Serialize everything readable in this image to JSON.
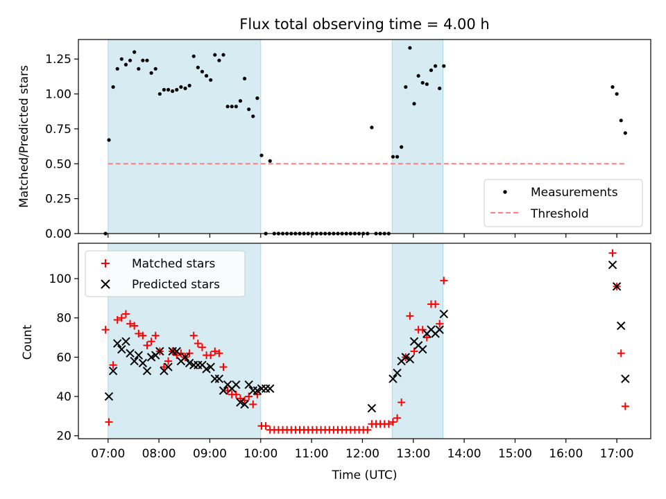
{
  "chart_data": [
    {
      "type": "scatter",
      "title": "Flux total observing time = 4.00 h",
      "ylabel": "Matched/Predicted stars",
      "xlabel": "",
      "ylim": [
        0,
        1.39
      ],
      "yticks": [
        "0.00",
        "0.25",
        "0.50",
        "0.75",
        "1.00",
        "1.25"
      ],
      "ytick_values": [
        0,
        0.25,
        0.5,
        0.75,
        1.0,
        1.25
      ],
      "legend_position": "lower-right",
      "shaded_spans": [
        [
          "07:00",
          "10:00"
        ],
        [
          "12:35",
          "13:35"
        ]
      ],
      "series": [
        {
          "name": "Measurements",
          "marker": "dot",
          "color": "#000000",
          "points": [
            [
              "06:57",
              0.0
            ],
            [
              "07:01",
              0.67
            ],
            [
              "07:06",
              1.05
            ],
            [
              "07:11",
              1.18
            ],
            [
              "07:16",
              1.25
            ],
            [
              "07:21",
              1.21
            ],
            [
              "07:26",
              1.24
            ],
            [
              "07:31",
              1.3
            ],
            [
              "07:36",
              1.18
            ],
            [
              "07:41",
              1.24
            ],
            [
              "07:46",
              1.24
            ],
            [
              "07:51",
              1.15
            ],
            [
              "07:56",
              1.18
            ],
            [
              "08:01",
              1.0
            ],
            [
              "08:06",
              1.03
            ],
            [
              "08:11",
              1.03
            ],
            [
              "08:16",
              1.02
            ],
            [
              "08:21",
              1.03
            ],
            [
              "08:26",
              1.05
            ],
            [
              "08:31",
              1.04
            ],
            [
              "08:36",
              1.06
            ],
            [
              "08:41",
              1.27
            ],
            [
              "08:46",
              1.19
            ],
            [
              "08:51",
              1.16
            ],
            [
              "08:56",
              1.13
            ],
            [
              "09:01",
              1.1
            ],
            [
              "09:06",
              1.28
            ],
            [
              "09:11",
              1.24
            ],
            [
              "09:16",
              1.28
            ],
            [
              "09:21",
              0.91
            ],
            [
              "09:26",
              0.91
            ],
            [
              "09:31",
              0.91
            ],
            [
              "09:36",
              0.95
            ],
            [
              "09:41",
              1.11
            ],
            [
              "09:46",
              0.89
            ],
            [
              "09:51",
              0.84
            ],
            [
              "09:56",
              0.97
            ],
            [
              "10:01",
              0.56
            ],
            [
              "10:06",
              0.0
            ],
            [
              "10:11",
              0.52
            ],
            [
              "10:16",
              0.0
            ],
            [
              "10:21",
              0.0
            ],
            [
              "10:26",
              0.0
            ],
            [
              "10:31",
              0.0
            ],
            [
              "10:36",
              0.0
            ],
            [
              "10:41",
              0.0
            ],
            [
              "10:46",
              0.0
            ],
            [
              "10:51",
              0.0
            ],
            [
              "10:56",
              0.0
            ],
            [
              "11:01",
              0.0
            ],
            [
              "11:06",
              0.0
            ],
            [
              "11:11",
              0.0
            ],
            [
              "11:16",
              0.0
            ],
            [
              "11:21",
              0.0
            ],
            [
              "11:26",
              0.0
            ],
            [
              "11:31",
              0.0
            ],
            [
              "11:36",
              0.0
            ],
            [
              "11:41",
              0.0
            ],
            [
              "11:46",
              0.0
            ],
            [
              "11:51",
              0.0
            ],
            [
              "11:56",
              0.0
            ],
            [
              "12:01",
              0.0
            ],
            [
              "12:06",
              0.0
            ],
            [
              "12:11",
              0.76
            ],
            [
              "12:16",
              0.0
            ],
            [
              "12:21",
              0.0
            ],
            [
              "12:26",
              0.0
            ],
            [
              "12:31",
              0.0
            ],
            [
              "12:36",
              0.55
            ],
            [
              "12:41",
              0.55
            ],
            [
              "12:46",
              0.62
            ],
            [
              "12:51",
              1.05
            ],
            [
              "12:56",
              1.33
            ],
            [
              "13:01",
              0.93
            ],
            [
              "13:06",
              1.13
            ],
            [
              "13:11",
              1.08
            ],
            [
              "13:16",
              1.07
            ],
            [
              "13:21",
              1.17
            ],
            [
              "13:26",
              1.2
            ],
            [
              "13:31",
              1.04
            ],
            [
              "13:36",
              1.2
            ],
            [
              "16:55",
              1.05
            ],
            [
              "17:00",
              1.0
            ],
            [
              "17:05",
              0.81
            ],
            [
              "17:10",
              0.72
            ]
          ]
        },
        {
          "name": "Threshold",
          "marker": "dashed-line",
          "color": "#ff7f7f",
          "points": [
            [
              "07:00",
              0.5
            ],
            [
              "17:10",
              0.5
            ]
          ]
        }
      ]
    },
    {
      "type": "scatter",
      "title": "",
      "ylabel": "Count",
      "xlabel": "Time (UTC)",
      "ylim": [
        18.5,
        118
      ],
      "yticks": [
        "20",
        "40",
        "60",
        "80",
        "100"
      ],
      "ytick_values": [
        20,
        40,
        60,
        80,
        100
      ],
      "xlim": [
        "06:25",
        "17:40"
      ],
      "xticks": [
        "07:00",
        "08:00",
        "09:00",
        "10:00",
        "11:00",
        "12:00",
        "13:00",
        "14:00",
        "15:00",
        "16:00",
        "17:00"
      ],
      "legend_position": "upper-left",
      "shaded_spans": [
        [
          "07:00",
          "10:00"
        ],
        [
          "12:35",
          "13:35"
        ]
      ],
      "series": [
        {
          "name": "Matched stars",
          "marker": "plus",
          "color": "#ff0000",
          "points": [
            [
              "06:57",
              74
            ],
            [
              "07:01",
              27
            ],
            [
              "07:06",
              56
            ],
            [
              "07:11",
              79
            ],
            [
              "07:16",
              80
            ],
            [
              "07:21",
              82
            ],
            [
              "07:26",
              77
            ],
            [
              "07:31",
              76
            ],
            [
              "07:36",
              72
            ],
            [
              "07:41",
              71
            ],
            [
              "07:46",
              66
            ],
            [
              "07:51",
              68
            ],
            [
              "07:56",
              71
            ],
            [
              "08:01",
              63
            ],
            [
              "08:06",
              55
            ],
            [
              "08:11",
              58
            ],
            [
              "08:16",
              63
            ],
            [
              "08:21",
              61
            ],
            [
              "08:26",
              62
            ],
            [
              "08:31",
              60
            ],
            [
              "08:36",
              62
            ],
            [
              "08:41",
              71
            ],
            [
              "08:46",
              67
            ],
            [
              "08:51",
              65
            ],
            [
              "08:56",
              61
            ],
            [
              "09:01",
              61
            ],
            [
              "09:06",
              63
            ],
            [
              "09:11",
              62
            ],
            [
              "09:16",
              55
            ],
            [
              "09:21",
              43
            ],
            [
              "09:26",
              41
            ],
            [
              "09:31",
              41
            ],
            [
              "09:36",
              39
            ],
            [
              "09:41",
              38
            ],
            [
              "09:46",
              40
            ],
            [
              "09:51",
              36
            ],
            [
              "09:56",
              41
            ],
            [
              "10:01",
              25
            ],
            [
              "10:06",
              25
            ],
            [
              "10:11",
              23
            ],
            [
              "10:16",
              23
            ],
            [
              "10:21",
              23
            ],
            [
              "10:26",
              23
            ],
            [
              "10:31",
              23
            ],
            [
              "10:36",
              23
            ],
            [
              "10:41",
              23
            ],
            [
              "10:46",
              23
            ],
            [
              "10:51",
              23
            ],
            [
              "10:56",
              23
            ],
            [
              "11:01",
              23
            ],
            [
              "11:06",
              23
            ],
            [
              "11:11",
              23
            ],
            [
              "11:16",
              23
            ],
            [
              "11:21",
              23
            ],
            [
              "11:26",
              23
            ],
            [
              "11:31",
              23
            ],
            [
              "11:36",
              23
            ],
            [
              "11:41",
              23
            ],
            [
              "11:46",
              23
            ],
            [
              "11:51",
              23
            ],
            [
              "11:56",
              23
            ],
            [
              "12:01",
              23
            ],
            [
              "12:06",
              23
            ],
            [
              "12:11",
              26
            ],
            [
              "12:16",
              26
            ],
            [
              "12:21",
              26
            ],
            [
              "12:26",
              26
            ],
            [
              "12:31",
              26
            ],
            [
              "12:36",
              27
            ],
            [
              "12:41",
              29
            ],
            [
              "12:46",
              37
            ],
            [
              "12:51",
              60
            ],
            [
              "12:56",
              81
            ],
            [
              "13:01",
              63
            ],
            [
              "13:06",
              74
            ],
            [
              "13:11",
              74
            ],
            [
              "13:16",
              70
            ],
            [
              "13:21",
              87
            ],
            [
              "13:26",
              87
            ],
            [
              "13:31",
              77
            ],
            [
              "13:36",
              99
            ],
            [
              "16:55",
              113
            ],
            [
              "17:00",
              96
            ],
            [
              "17:05",
              62
            ],
            [
              "17:10",
              35
            ]
          ]
        },
        {
          "name": "Predicted stars",
          "marker": "x",
          "color": "#000000",
          "points": [
            [
              "07:01",
              40
            ],
            [
              "07:06",
              53
            ],
            [
              "07:11",
              67
            ],
            [
              "07:16",
              64
            ],
            [
              "07:21",
              68
            ],
            [
              "07:26",
              62
            ],
            [
              "07:31",
              58
            ],
            [
              "07:36",
              61
            ],
            [
              "07:41",
              57
            ],
            [
              "07:46",
              53
            ],
            [
              "07:51",
              60
            ],
            [
              "07:56",
              61
            ],
            [
              "08:01",
              63
            ],
            [
              "08:06",
              53
            ],
            [
              "08:11",
              55
            ],
            [
              "08:16",
              63
            ],
            [
              "08:21",
              63
            ],
            [
              "08:26",
              58
            ],
            [
              "08:31",
              60
            ],
            [
              "08:36",
              57
            ],
            [
              "08:41",
              56
            ],
            [
              "08:46",
              56
            ],
            [
              "08:51",
              56
            ],
            [
              "08:56",
              54
            ],
            [
              "09:01",
              55
            ],
            [
              "09:06",
              49
            ],
            [
              "09:11",
              49
            ],
            [
              "09:16",
              43
            ],
            [
              "09:21",
              46
            ],
            [
              "09:26",
              44
            ],
            [
              "09:31",
              46
            ],
            [
              "09:36",
              37
            ],
            [
              "09:41",
              36
            ],
            [
              "09:46",
              46
            ],
            [
              "09:51",
              43
            ],
            [
              "09:56",
              43
            ],
            [
              "10:01",
              44
            ],
            [
              "10:06",
              44
            ],
            [
              "10:11",
              44
            ],
            [
              "12:11",
              34
            ],
            [
              "12:36",
              49
            ],
            [
              "12:41",
              52
            ],
            [
              "12:46",
              58
            ],
            [
              "12:51",
              60
            ],
            [
              "12:56",
              59
            ],
            [
              "13:01",
              68
            ],
            [
              "13:06",
              66
            ],
            [
              "13:11",
              64
            ],
            [
              "13:16",
              72
            ],
            [
              "13:21",
              74
            ],
            [
              "13:26",
              72
            ],
            [
              "13:31",
              74
            ],
            [
              "13:36",
              82
            ],
            [
              "16:55",
              107
            ],
            [
              "17:00",
              96
            ],
            [
              "17:05",
              76
            ],
            [
              "17:10",
              49
            ]
          ]
        }
      ]
    }
  ]
}
